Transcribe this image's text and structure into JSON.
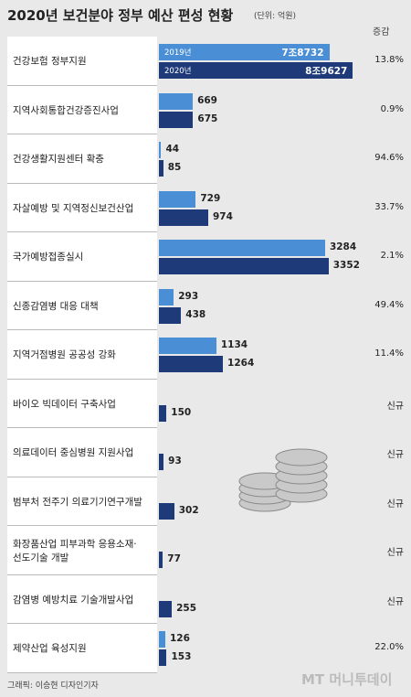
{
  "chart_data": [
    {
      "type": "bar",
      "title": "2020년 보건분야 정부 예산 편성 현황",
      "unit": "(단위: 억원)",
      "change_header": "증감",
      "categories": [
        "건강보험 정부지원"
      ],
      "series": [
        {
          "name": "2019년",
          "color": "#4a8fd6",
          "values": [
            78732
          ],
          "value_labels": [
            "7조8732"
          ]
        },
        {
          "name": "2020년",
          "color": "#1e3a78",
          "values": [
            89627
          ],
          "value_labels": [
            "8조9627"
          ]
        }
      ],
      "changes": [
        "13.8%"
      ],
      "xlim": [
        0,
        92000
      ]
    },
    {
      "type": "bar",
      "categories": [
        "지역사회통합건강증진사업",
        "건강생활지원센터 확충",
        "자살예방 및 지역정신보건산업",
        "국가예방접종실시",
        "신종감염병 대응 대책",
        "지역거점병원 공공성 강화",
        "바이오 빅데이터 구축사업",
        "의료데이터 중심병원 지원사업",
        "범부처 전주기 의료기기연구개발",
        "화장품산업 피부과학 응용소재·\n선도기술 개발",
        "감염병 예방치료 기술개발사업",
        "제약산업 육성지원"
      ],
      "series": [
        {
          "color": "#4a8fd6",
          "values": [
            669,
            44,
            729,
            3284,
            293,
            1134,
            null,
            null,
            null,
            null,
            null,
            126
          ]
        },
        {
          "color": "#1e3a78",
          "values": [
            675,
            85,
            974,
            3352,
            438,
            1264,
            150,
            93,
            302,
            77,
            255,
            153
          ]
        }
      ],
      "changes": [
        "0.9%",
        "94.6%",
        "33.7%",
        "2.1%",
        "49.4%",
        "11.4%",
        "신규",
        "신규",
        "신규",
        "신규",
        "신규",
        "22.0%"
      ],
      "xlim": [
        0,
        3700
      ]
    }
  ],
  "credit": "그래픽: 이승현 디자인기자",
  "watermark": "MT 머니투데이"
}
